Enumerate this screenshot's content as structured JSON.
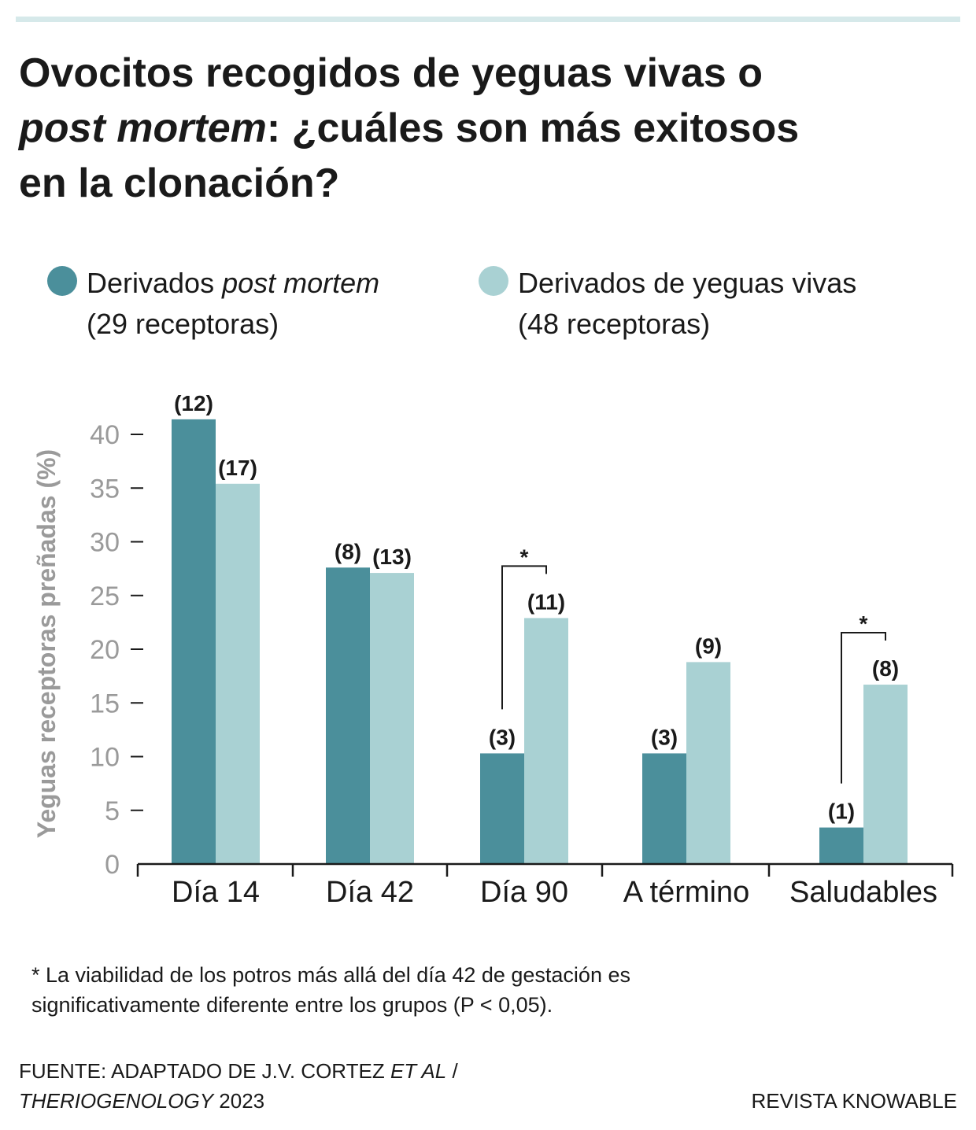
{
  "title": {
    "line1": "Ovocitos recogidos de yeguas vivas o",
    "line2_italic": "post mortem",
    "line2_rest": ": ¿cuáles son más exitosos",
    "line3": "en la clonación?"
  },
  "legend": [
    {
      "label": "Derivados ",
      "label_italic": "post mortem",
      "sub": "(29 receptoras)",
      "color": "#4b8f9b"
    },
    {
      "label": "Derivados de yeguas vivas",
      "label_italic": "",
      "sub": "(48 receptoras)",
      "color": "#a9d1d3"
    }
  ],
  "chart_data": {
    "type": "bar",
    "ylabel": "Yeguas receptoras preñadas (%)",
    "ylim": [
      0,
      42
    ],
    "yticks": [
      0,
      5,
      10,
      15,
      20,
      25,
      30,
      35,
      40
    ],
    "categories": [
      "Día 14",
      "Día 42",
      "Día 90",
      "A término",
      "Saludables"
    ],
    "series": [
      {
        "name": "Derivados post mortem (29 receptoras)",
        "color": "#4b8f9b",
        "values": [
          41.4,
          27.6,
          10.3,
          10.3,
          3.4
        ],
        "labels": [
          "(12)",
          "(8)",
          "(3)",
          "(3)",
          "(1)"
        ]
      },
      {
        "name": "Derivados de yeguas vivas (48 receptoras)",
        "color": "#a9d1d3",
        "values": [
          35.4,
          27.1,
          22.9,
          18.8,
          16.7
        ],
        "labels": [
          "(17)",
          "(13)",
          "(11)",
          "(9)",
          "(8)"
        ]
      }
    ],
    "significance": [
      {
        "category": "Día 90",
        "marker": "*"
      },
      {
        "category": "Saludables",
        "marker": "*"
      }
    ],
    "legend_position": "top"
  },
  "note": {
    "line1": "* La viabilidad de los potros más allá del día 42 de gestación es",
    "line2": "significativamente diferente entre los grupos (P < 0,05)."
  },
  "source": {
    "prefix": "FUENTE: ADAPTADO DE J.V. CORTEZ ",
    "etal": "ET AL",
    "slash": " /",
    "journal": "THERIOGENOLOGY",
    "year": " 2023"
  },
  "publisher": "REVISTA KNOWABLE"
}
